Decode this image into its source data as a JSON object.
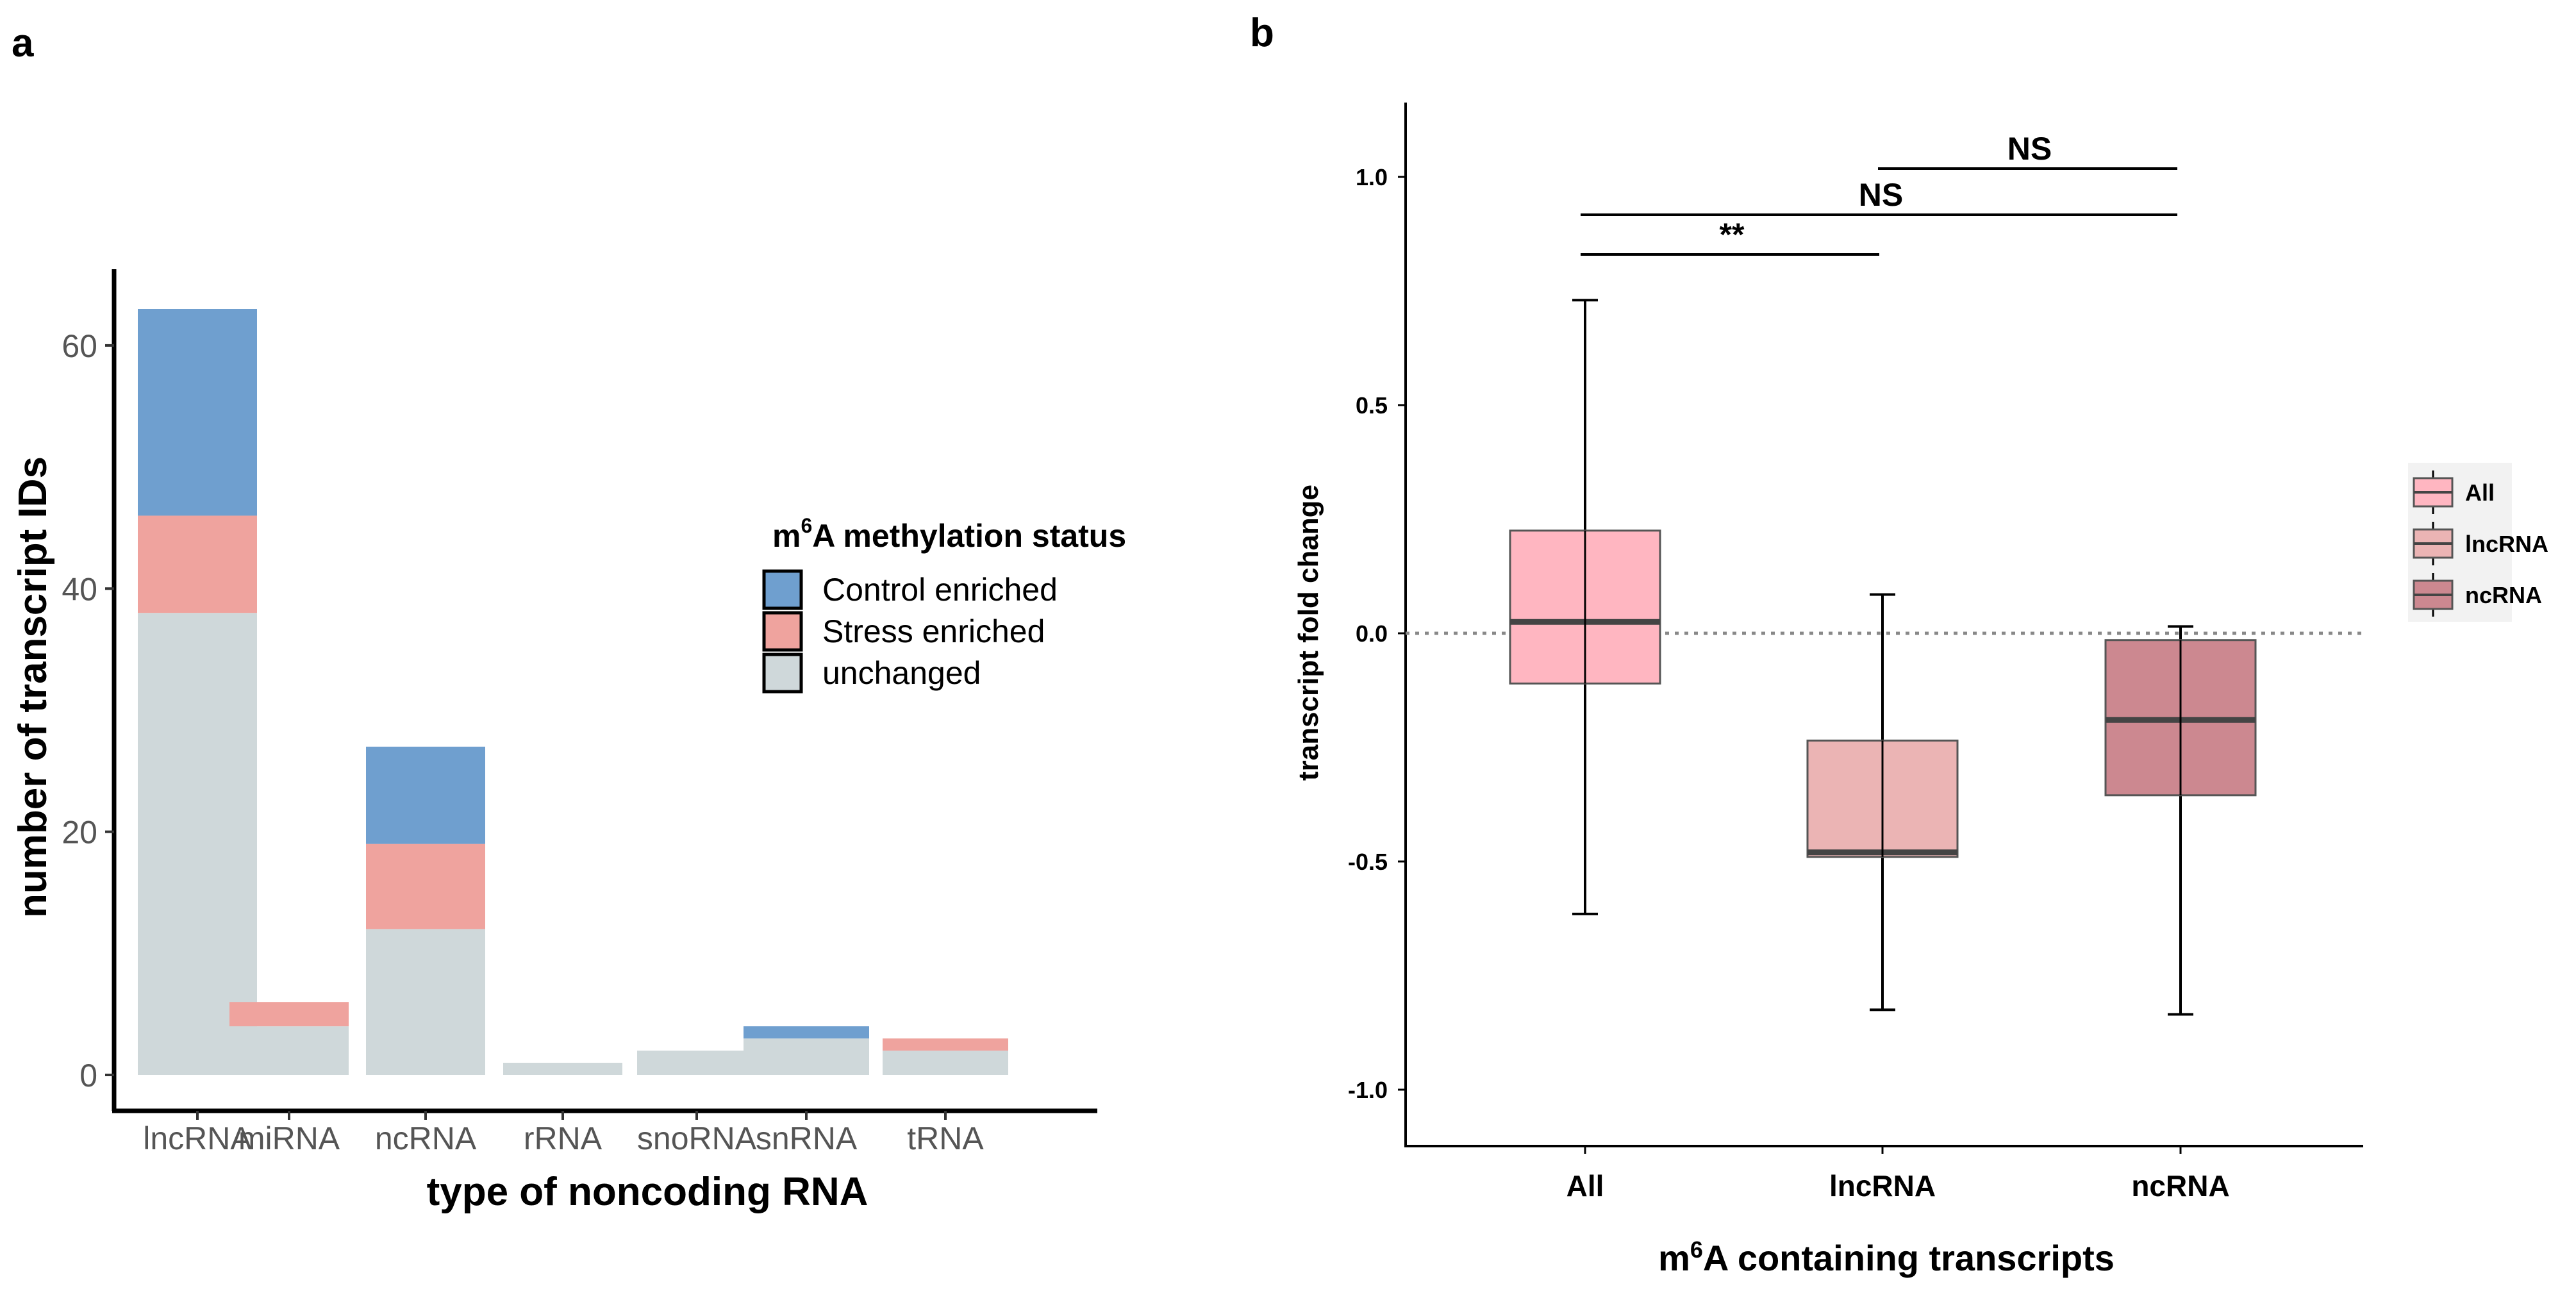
{
  "panels": {
    "a": "a",
    "b": "b"
  },
  "chart_data": [
    {
      "type": "bar",
      "stacked": true,
      "categories": [
        "lncRNA",
        "miRNA",
        "ncRNA",
        "rRNA",
        "snoRNA",
        "snRNA",
        "tRNA"
      ],
      "series": [
        {
          "name": "unchanged",
          "color": "#cfd8da",
          "values": [
            38,
            4,
            12,
            1,
            2,
            3,
            2
          ]
        },
        {
          "name": "Stress enriched",
          "color": "#efa39e",
          "values": [
            8,
            2,
            7,
            0,
            0,
            0,
            1
          ]
        },
        {
          "name": "Control enriched",
          "color": "#6f9fcf",
          "values": [
            17,
            0,
            8,
            0,
            0,
            1,
            0
          ]
        }
      ],
      "title": "",
      "xlabel": "type of noncoding RNA",
      "ylabel": "number of transcript IDs",
      "ylim": [
        0,
        65
      ],
      "yticks": [
        "0",
        "20",
        "40",
        "60"
      ],
      "legend": {
        "title_prefix": "m",
        "title_sup": "6",
        "title_suffix": "A methylation status",
        "placement": "right",
        "order": [
          "Control enriched",
          "Stress enriched",
          "unchanged"
        ]
      }
    },
    {
      "type": "box",
      "categories": [
        "All",
        "lncRNA",
        "ncRNA"
      ],
      "boxes": [
        {
          "name": "All",
          "color": "#ffb6c1",
          "whisker_low": -0.615,
          "q1": -0.11,
          "median": 0.025,
          "q3": 0.225,
          "whisker_high": 0.73
        },
        {
          "name": "lncRNA",
          "color": "#ebb4b4",
          "whisker_low": -0.825,
          "q1": -0.49,
          "median": -0.48,
          "q3": -0.235,
          "whisker_high": 0.085
        },
        {
          "name": "ncRNA",
          "color": "#cc8890",
          "whisker_low": -0.835,
          "q1": -0.355,
          "median": -0.19,
          "q3": -0.015,
          "whisker_high": 0.015
        }
      ],
      "reference_line": 0.0,
      "xlabel_prefix": "m",
      "xlabel_sup": "6",
      "xlabel_suffix": "A containing transcripts",
      "ylabel": "transcript fold change",
      "ylim": [
        -1.12,
        1.17
      ],
      "yticks": [
        "1.0",
        "0.5",
        "0.0",
        "-0.5",
        "-1.0"
      ],
      "significance": [
        {
          "from": "All",
          "to": "lncRNA",
          "label": "**"
        },
        {
          "from": "All",
          "to": "ncRNA",
          "label": "NS"
        },
        {
          "from": "lncRNA",
          "to": "ncRNA",
          "label": "NS"
        }
      ],
      "legend": {
        "placement": "right",
        "entries": [
          "All",
          "lncRNA",
          "ncRNA"
        ]
      }
    }
  ]
}
